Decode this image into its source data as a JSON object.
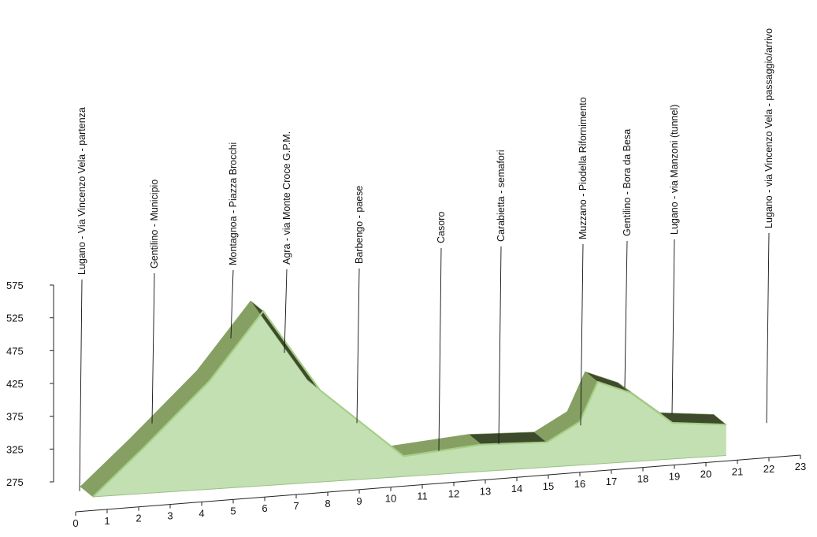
{
  "chart_data": {
    "type": "area",
    "title": "",
    "xlabel": "",
    "ylabel": "",
    "ylim": [
      275,
      575
    ],
    "xlim": [
      0,
      23
    ],
    "y_ticks": [
      275,
      325,
      375,
      425,
      475,
      525,
      575
    ],
    "x_ticks": [
      0,
      1,
      2,
      3,
      4,
      5,
      6,
      7,
      8,
      9,
      10,
      11,
      12,
      13,
      14,
      15,
      16,
      17,
      18,
      19,
      20,
      21,
      22,
      23
    ],
    "grid": false,
    "legend": "none",
    "colors": {
      "face": "#c3e0b3",
      "top": "#86a064",
      "side": "#3e4a2c",
      "rim": "#a6cf86",
      "axis": "#222222"
    },
    "series": [
      {
        "x": [
          0,
          1.7,
          3.9,
          5.7,
          7.6,
          10.4,
          13.0,
          15.2,
          16.3,
          16.9,
          18.0,
          19.4,
          21.2
        ],
        "values": [
          275,
          345,
          440,
          541,
          415,
          306,
          316,
          313,
          341,
          400,
          380,
          330,
          322
        ]
      }
    ],
    "waypoints": [
      {
        "label": "Lugano - Via Vincenzo Vela - partenza",
        "km": 0.2
      },
      {
        "label": "Gentilino - Municipio",
        "km": 2.5
      },
      {
        "label": "Montagnoa - Piazza Brocchi",
        "km": 5.0
      },
      {
        "label": "Agra - via Monte Croce  G.P.M.",
        "km": 6.7
      },
      {
        "label": "Barbengo - paese",
        "km": 9.0
      },
      {
        "label": "Casoro",
        "km": 11.6
      },
      {
        "label": "Carabietta - semafori",
        "km": 13.5
      },
      {
        "label": "Muzzano - Piodella  Rifornimento",
        "km": 16.1
      },
      {
        "label": "Gentilino - Bora da Besa",
        "km": 17.5
      },
      {
        "label": "Lugano - via Manzoni (tunnel)",
        "km": 19.0
      },
      {
        "label": "Lugano - via Vincenzo Vela - passaggio/arrivo",
        "km": 22.0
      }
    ]
  }
}
